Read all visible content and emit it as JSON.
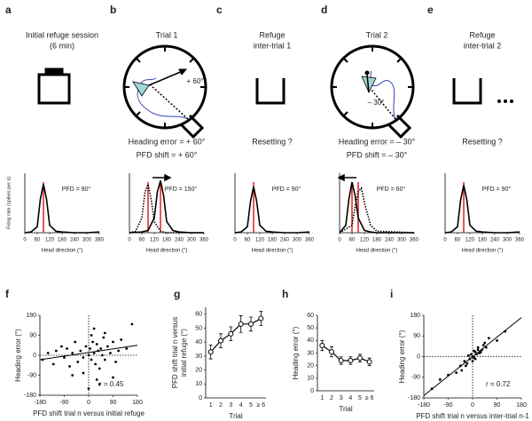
{
  "panel_letters": [
    "a",
    "b",
    "c",
    "d",
    "e",
    "f",
    "g",
    "h",
    "i"
  ],
  "schematics": [
    {
      "title": [
        "Initial refuge session",
        "(6 min)"
      ]
    },
    {
      "title": [
        "Trial 1"
      ],
      "angle": "+ 60°",
      "notes": [
        "Heading error = + 60°",
        "PFD shift = + 60°"
      ]
    },
    {
      "title": [
        "Refuge",
        "inter-trial 1"
      ],
      "notes": [
        "Resetting ?"
      ]
    },
    {
      "title": [
        "Trial 2"
      ],
      "angle": "– 30°",
      "notes": [
        "Heading error = – 30°",
        "PFD shift = – 30°"
      ]
    },
    {
      "title": [
        "Refuge",
        "inter-trial 2"
      ],
      "notes": [
        "Resetting ?"
      ]
    }
  ],
  "chart_data": [
    {
      "type": "line",
      "xlim": [
        0,
        360
      ],
      "xticks": [
        0,
        60,
        120,
        180,
        240,
        300,
        360
      ],
      "ylim": [
        0,
        80
      ],
      "xlabel": "Head direction (°)",
      "ylabel": "Firing rate (spikes per s)",
      "series": [
        {
          "style": "solid",
          "color": "#000000",
          "x": [
            0,
            30,
            60,
            75,
            90,
            105,
            120,
            150,
            180,
            240,
            300,
            360
          ],
          "values": [
            0,
            1,
            8,
            45,
            65,
            45,
            10,
            2,
            1,
            0,
            0,
            1
          ]
        }
      ],
      "pfd_lines": [
        90
      ],
      "pfd_color": "#e3201b",
      "pfd_label": "PFD = 90°"
    },
    {
      "type": "line",
      "xlim": [
        0,
        360
      ],
      "xticks": [
        0,
        60,
        120,
        180,
        240,
        300,
        360
      ],
      "ylim": [
        0,
        80
      ],
      "xlabel": "Head direction (°)",
      "series": [
        {
          "style": "dotted",
          "color": "#000000",
          "x": [
            0,
            30,
            60,
            75,
            90,
            105,
            120,
            150,
            180,
            360
          ],
          "values": [
            0,
            2,
            20,
            55,
            65,
            45,
            15,
            2,
            0,
            0
          ]
        },
        {
          "style": "solid",
          "color": "#000000",
          "x": [
            0,
            60,
            90,
            120,
            135,
            150,
            165,
            180,
            210,
            240,
            300,
            360
          ],
          "values": [
            0,
            1,
            3,
            20,
            55,
            70,
            50,
            15,
            3,
            1,
            0,
            0
          ]
        }
      ],
      "pfd_lines": [
        90,
        150
      ],
      "pfd_color": "#e3201b",
      "pfd_label": "PFD = 150°"
    },
    {
      "type": "line",
      "xlim": [
        0,
        360
      ],
      "xticks": [
        0,
        60,
        120,
        180,
        240,
        300,
        360
      ],
      "ylim": [
        0,
        80
      ],
      "xlabel": "Head direction (°)",
      "series": [
        {
          "style": "solid",
          "color": "#000000",
          "x": [
            0,
            30,
            60,
            75,
            90,
            105,
            120,
            150,
            180,
            240,
            300,
            360
          ],
          "values": [
            0,
            1,
            8,
            42,
            62,
            42,
            10,
            2,
            1,
            0,
            0,
            1
          ]
        }
      ],
      "pfd_lines": [
        90
      ],
      "pfd_color": "#e3201b",
      "pfd_label": "PFD = 90°"
    },
    {
      "type": "line",
      "xlim": [
        0,
        360
      ],
      "xticks": [
        0,
        60,
        120,
        180,
        240,
        300,
        360
      ],
      "ylim": [
        0,
        80
      ],
      "xlabel": "Head direction (°)",
      "series": [
        {
          "style": "dotted",
          "color": "#000000",
          "x": [
            0,
            60,
            75,
            90,
            105,
            120,
            150,
            180,
            360
          ],
          "values": [
            0,
            10,
            35,
            55,
            60,
            40,
            10,
            2,
            0
          ]
        },
        {
          "style": "solid",
          "color": "#000000",
          "x": [
            0,
            30,
            45,
            60,
            75,
            90,
            120,
            150,
            180,
            360
          ],
          "values": [
            0,
            10,
            45,
            68,
            50,
            20,
            3,
            1,
            0,
            0
          ]
        }
      ],
      "pfd_lines": [
        60,
        90
      ],
      "pfd_color": "#e3201b",
      "pfd_label": "PFD = 60°"
    },
    {
      "type": "line",
      "xlim": [
        0,
        360
      ],
      "xticks": [
        0,
        60,
        120,
        180,
        240,
        300,
        360
      ],
      "ylim": [
        0,
        80
      ],
      "xlabel": "Head direction (°)",
      "series": [
        {
          "style": "solid",
          "color": "#000000",
          "x": [
            0,
            30,
            60,
            75,
            90,
            105,
            120,
            150,
            180,
            240,
            300,
            360
          ],
          "values": [
            0,
            1,
            8,
            44,
            64,
            44,
            10,
            2,
            1,
            0,
            0,
            1
          ]
        }
      ],
      "pfd_lines": [
        90
      ],
      "pfd_color": "#e3201b",
      "pfd_label": "PFD = 90°"
    },
    {
      "type": "scatter",
      "xlim": [
        -180,
        180
      ],
      "ylim": [
        -180,
        180
      ],
      "xticks": [
        -180,
        -90,
        0,
        90,
        180
      ],
      "yticks": [
        180,
        90,
        0,
        -90,
        -180
      ],
      "zero_lines": true,
      "xlabel": "PFD shift trial n versus initial refuge",
      "ylabel": [
        "Heading error (°)"
      ],
      "annotation": "r = 0.45",
      "color": "#000000",
      "x": [
        -170,
        -150,
        -130,
        -120,
        -100,
        -90,
        -80,
        -70,
        -60,
        -50,
        -40,
        -30,
        -20,
        -10,
        0,
        5,
        10,
        15,
        20,
        25,
        30,
        35,
        40,
        45,
        50,
        55,
        60,
        70,
        80,
        90,
        100,
        110,
        120,
        140,
        160,
        -60,
        -20,
        30,
        60,
        90,
        20,
        40,
        10,
        0
      ],
      "values": [
        -20,
        10,
        -40,
        20,
        40,
        -10,
        30,
        -50,
        10,
        60,
        -30,
        20,
        -10,
        40,
        0,
        30,
        -20,
        60,
        10,
        -40,
        50,
        20,
        -60,
        30,
        0,
        80,
        -20,
        40,
        10,
        60,
        -30,
        20,
        70,
        30,
        140,
        -90,
        -80,
        -110,
        100,
        -100,
        120,
        -130,
        90,
        -150
      ],
      "fit": {
        "x": [
          -180,
          180
        ],
        "y": [
          -20,
          45
        ]
      }
    },
    {
      "type": "line",
      "categories": [
        "1",
        "2",
        "3",
        "4",
        "5",
        "≥ 6"
      ],
      "values": [
        33,
        41,
        46,
        53,
        53,
        57
      ],
      "errors": [
        5,
        5,
        5,
        6,
        5,
        5
      ],
      "ylim": [
        0,
        65
      ],
      "yticks": [
        0,
        10,
        20,
        30,
        40,
        50,
        60
      ],
      "xlabel": "Trial",
      "ylabel": [
        "PFD shift trial n versus",
        "initial refuge (°)"
      ],
      "color": "#000000"
    },
    {
      "type": "line",
      "categories": [
        "1",
        "2",
        "3",
        "4",
        "5",
        "≥ 6"
      ],
      "values": [
        36,
        31,
        24,
        24,
        26,
        23
      ],
      "errors": [
        4,
        4,
        3,
        3,
        3,
        3
      ],
      "ylim": [
        0,
        60
      ],
      "yticks": [
        0,
        10,
        20,
        30,
        40,
        50,
        60
      ],
      "xlabel": "Trial",
      "ylabel": [
        "Heading error (°)"
      ],
      "color": "#000000"
    },
    {
      "type": "scatter",
      "xlim": [
        -180,
        180
      ],
      "ylim": [
        -180,
        180
      ],
      "xticks": [
        -180,
        -90,
        0,
        90,
        180
      ],
      "yticks": [
        180,
        90,
        0,
        -90,
        -180
      ],
      "zero_lines": true,
      "xlabel": "PFD shift trial n versus inter-trial n-1",
      "ylabel": [
        "Heading error (°)"
      ],
      "annotation": "r = 0.72",
      "color": "#000000",
      "x": [
        -150,
        -120,
        -90,
        -60,
        -45,
        -30,
        -20,
        -10,
        -5,
        0,
        5,
        10,
        15,
        20,
        25,
        30,
        40,
        50,
        60,
        90,
        120,
        -40,
        -15,
        0,
        10,
        20,
        35,
        5,
        -25,
        45
      ],
      "values": [
        -140,
        -100,
        -80,
        -70,
        -40,
        -20,
        -30,
        -10,
        10,
        0,
        -5,
        20,
        10,
        30,
        15,
        20,
        50,
        40,
        80,
        70,
        110,
        -60,
        5,
        -20,
        -10,
        40,
        30,
        25,
        -40,
        60
      ],
      "fit": {
        "x": [
          -180,
          180
        ],
        "y": [
          -170,
          170
        ]
      }
    }
  ]
}
